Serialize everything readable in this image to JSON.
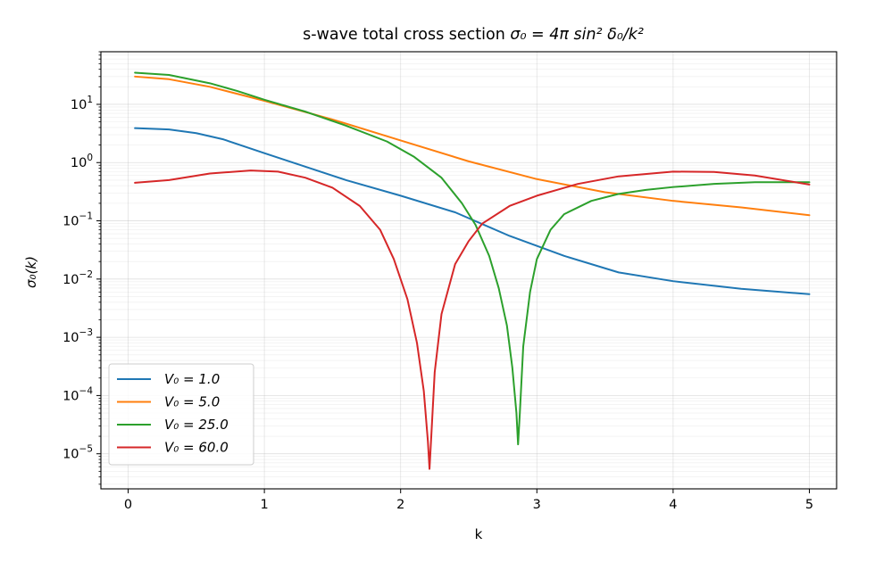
{
  "chart_data": {
    "type": "line",
    "title_main": "s-wave total cross section ",
    "title_math": "σ₀ = 4π sin² δ₀/k²",
    "xlabel": "k",
    "ylabel": "σ₀(k)",
    "xlim": [
      -0.2,
      5.2
    ],
    "ylim": [
      2.5e-06,
      80
    ],
    "yscale": "log",
    "grid": true,
    "legend_position": "lower-left",
    "x_ticks": [
      0,
      1,
      2,
      3,
      4,
      5
    ],
    "x_tick_labels": [
      "0",
      "1",
      "2",
      "3",
      "4",
      "5"
    ],
    "y_ticks": [
      1e-05,
      0.0001,
      0.001,
      0.01,
      0.1,
      1,
      10
    ],
    "y_tick_labels": [
      {
        "base": "10",
        "exp": "−5"
      },
      {
        "base": "10",
        "exp": "−4"
      },
      {
        "base": "10",
        "exp": "−3"
      },
      {
        "base": "10",
        "exp": "−2"
      },
      {
        "base": "10",
        "exp": "−1"
      },
      {
        "base": "10",
        "exp": "0"
      },
      {
        "base": "10",
        "exp": "1"
      }
    ],
    "series": [
      {
        "name": "V₀ = 1.0",
        "color": "#1f77b4",
        "points": [
          [
            0.05,
            3.9
          ],
          [
            0.3,
            3.7
          ],
          [
            0.5,
            3.2
          ],
          [
            0.7,
            2.5
          ],
          [
            1.0,
            1.45
          ],
          [
            1.3,
            0.85
          ],
          [
            1.6,
            0.5
          ],
          [
            2.0,
            0.27
          ],
          [
            2.4,
            0.14
          ],
          [
            2.8,
            0.055
          ],
          [
            3.2,
            0.025
          ],
          [
            3.6,
            0.013
          ],
          [
            4.0,
            0.0092
          ],
          [
            4.5,
            0.0068
          ],
          [
            5.0,
            0.0055
          ]
        ]
      },
      {
        "name": "V₀ = 5.0",
        "color": "#ff7f0e",
        "points": [
          [
            0.05,
            30
          ],
          [
            0.3,
            27
          ],
          [
            0.6,
            20
          ],
          [
            1.0,
            11.5
          ],
          [
            1.5,
            5.5
          ],
          [
            2.0,
            2.4
          ],
          [
            2.5,
            1.05
          ],
          [
            3.0,
            0.52
          ],
          [
            3.5,
            0.31
          ],
          [
            4.0,
            0.22
          ],
          [
            4.5,
            0.17
          ],
          [
            5.0,
            0.125
          ]
        ]
      },
      {
        "name": "V₀ = 25.0",
        "color": "#2ca02c",
        "points": [
          [
            0.05,
            35
          ],
          [
            0.3,
            32
          ],
          [
            0.6,
            23
          ],
          [
            0.8,
            17
          ],
          [
            1.0,
            12
          ],
          [
            1.3,
            7.5
          ],
          [
            1.6,
            4.3
          ],
          [
            1.9,
            2.3
          ],
          [
            2.1,
            1.25
          ],
          [
            2.3,
            0.55
          ],
          [
            2.45,
            0.2
          ],
          [
            2.55,
            0.085
          ],
          [
            2.65,
            0.025
          ],
          [
            2.72,
            0.007
          ],
          [
            2.78,
            0.0016
          ],
          [
            2.82,
            0.0003
          ],
          [
            2.85,
            5e-05
          ],
          [
            2.862,
            1.45e-05
          ],
          [
            2.875,
            5e-05
          ],
          [
            2.9,
            0.0007
          ],
          [
            2.95,
            0.006
          ],
          [
            3.0,
            0.022
          ],
          [
            3.1,
            0.07
          ],
          [
            3.2,
            0.13
          ],
          [
            3.4,
            0.22
          ],
          [
            3.6,
            0.29
          ],
          [
            3.8,
            0.34
          ],
          [
            4.0,
            0.38
          ],
          [
            4.3,
            0.43
          ],
          [
            4.6,
            0.46
          ],
          [
            5.0,
            0.46
          ]
        ]
      },
      {
        "name": "V₀ = 60.0",
        "color": "#d62728",
        "points": [
          [
            0.05,
            0.45
          ],
          [
            0.3,
            0.5
          ],
          [
            0.6,
            0.65
          ],
          [
            0.9,
            0.73
          ],
          [
            1.1,
            0.7
          ],
          [
            1.3,
            0.55
          ],
          [
            1.5,
            0.37
          ],
          [
            1.7,
            0.18
          ],
          [
            1.85,
            0.07
          ],
          [
            1.95,
            0.022
          ],
          [
            2.05,
            0.0045
          ],
          [
            2.12,
            0.0008
          ],
          [
            2.17,
            0.00012
          ],
          [
            2.2,
            1.65e-05
          ],
          [
            2.212,
            5.5e-06
          ],
          [
            2.225,
            2e-05
          ],
          [
            2.25,
            0.00025
          ],
          [
            2.3,
            0.0025
          ],
          [
            2.4,
            0.018
          ],
          [
            2.5,
            0.045
          ],
          [
            2.6,
            0.09
          ],
          [
            2.8,
            0.18
          ],
          [
            3.0,
            0.27
          ],
          [
            3.3,
            0.43
          ],
          [
            3.6,
            0.58
          ],
          [
            4.0,
            0.7
          ],
          [
            4.3,
            0.69
          ],
          [
            4.6,
            0.6
          ],
          [
            5.0,
            0.42
          ]
        ]
      }
    ]
  }
}
